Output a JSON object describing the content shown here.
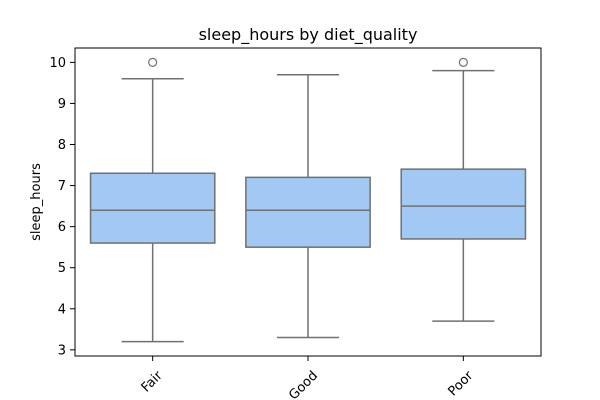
{
  "chart_data": {
    "type": "box",
    "title": "sleep_hours by diet_quality",
    "xlabel": "",
    "ylabel": "sleep_hours",
    "ylim": [
      2.85,
      10.35
    ],
    "y_ticks": [
      3,
      4,
      5,
      6,
      7,
      8,
      9,
      10
    ],
    "grid": false,
    "legend": "none",
    "box_color": "#a1c9f4",
    "line_color": "#707070",
    "categories": [
      "Fair",
      "Good",
      "Poor"
    ],
    "boxes": [
      {
        "category": "Fair",
        "whisker_low": 3.2,
        "q1": 5.6,
        "median": 6.4,
        "q3": 7.3,
        "whisker_high": 9.6,
        "outliers": [
          10.0
        ]
      },
      {
        "category": "Good",
        "whisker_low": 3.3,
        "q1": 5.5,
        "median": 6.4,
        "q3": 7.2,
        "whisker_high": 9.7,
        "outliers": []
      },
      {
        "category": "Poor",
        "whisker_low": 3.7,
        "q1": 5.7,
        "median": 6.5,
        "q3": 7.4,
        "whisker_high": 9.8,
        "outliers": [
          10.0
        ]
      }
    ]
  }
}
